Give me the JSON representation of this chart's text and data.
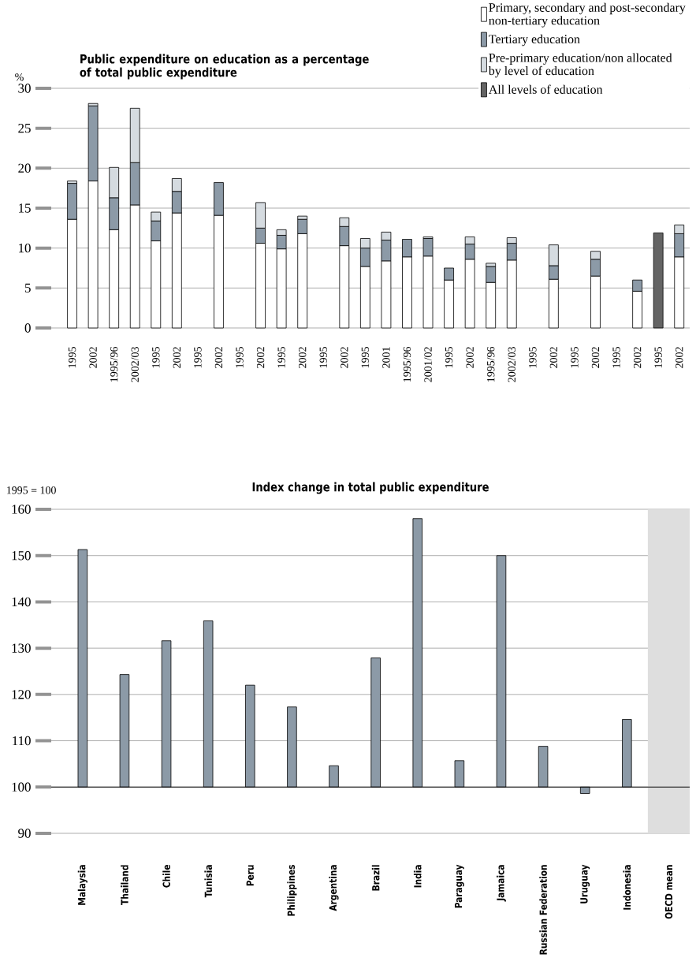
{
  "chart_data": [
    {
      "type": "bar",
      "title": "Public expenditure on education as a percentage of total public expenditure",
      "ylabel": "%",
      "categories": [
        "1995",
        "2002",
        "1995/96",
        "2002/03",
        "1995",
        "2002",
        "1995",
        "2002",
        "1995",
        "2002",
        "1995",
        "2002",
        "1995",
        "2002",
        "1995",
        "2001",
        "1995/96",
        "2001/02",
        "1995",
        "2002",
        "1995/96",
        "2002/03",
        "1995",
        "2002",
        "1995",
        "2002",
        "1995",
        "2002",
        "1995",
        "2002"
      ],
      "stacked": true,
      "series": [
        {
          "name": "Primary, secondary and post-secondary non-tertiary education",
          "color": "#ffffff",
          "values": [
            13.6,
            18.4,
            12.3,
            15.4,
            10.9,
            14.4,
            null,
            14.1,
            null,
            10.6,
            9.9,
            11.8,
            null,
            10.3,
            7.7,
            8.4,
            8.9,
            9.0,
            6.0,
            8.6,
            5.7,
            8.5,
            null,
            6.1,
            null,
            6.5,
            null,
            4.6,
            null,
            8.9
          ]
        },
        {
          "name": "Tertiary education",
          "color": "#8c9aa7",
          "values": [
            4.5,
            9.4,
            4.0,
            5.3,
            2.5,
            2.7,
            null,
            4.1,
            null,
            1.9,
            1.7,
            1.8,
            null,
            2.4,
            2.3,
            2.6,
            2.2,
            2.2,
            1.5,
            1.9,
            2.0,
            2.1,
            null,
            1.7,
            null,
            2.1,
            null,
            1.4,
            null,
            2.9
          ]
        },
        {
          "name": "Pre-primary education/non allocated by level of education",
          "color": "#d5dbe0",
          "values": [
            0.3,
            0.3,
            3.8,
            6.8,
            1.1,
            1.6,
            null,
            null,
            null,
            3.2,
            0.7,
            0.4,
            null,
            1.1,
            1.2,
            1.0,
            null,
            0.2,
            null,
            0.9,
            0.4,
            0.7,
            null,
            2.6,
            null,
            1.0,
            null,
            null,
            null,
            1.1
          ]
        },
        {
          "name": "All levels of education",
          "color": "#646464",
          "values": [
            null,
            null,
            null,
            null,
            null,
            null,
            null,
            null,
            null,
            null,
            null,
            null,
            null,
            null,
            null,
            null,
            null,
            null,
            null,
            null,
            null,
            null,
            null,
            null,
            null,
            null,
            null,
            null,
            11.9,
            null
          ]
        }
      ],
      "ylim": [
        0,
        30
      ],
      "yticks": [
        0,
        5,
        10,
        15,
        20,
        25,
        30
      ],
      "grid": "y",
      "legend": "top right"
    },
    {
      "type": "bar",
      "title": "Index change in total public expenditure",
      "ylabel": "1995 = 100",
      "categories": [
        "Malaysia",
        "Thailand",
        "Chile",
        "Tunisia",
        "Peru",
        "Philippines",
        "Argentina",
        "Brazil",
        "India",
        "Paraguay",
        "Jamaica",
        "Russian Federation",
        "Uruguay",
        "Indonesia",
        "OECD mean"
      ],
      "values": [
        51.3,
        24.3,
        31.6,
        35.9,
        22.0,
        17.3,
        4.6,
        27.9,
        58.0,
        5.7,
        50.0,
        8.8,
        -1.4,
        14.6,
        null
      ],
      "base": [
        100,
        100,
        100,
        100,
        100,
        100,
        100,
        100,
        100,
        100,
        100,
        100,
        100,
        100,
        null
      ],
      "color": "#8c9aa7",
      "ylim": [
        90,
        160
      ],
      "yticks": [
        90,
        100,
        110,
        120,
        130,
        140,
        150,
        160
      ],
      "grid": "y",
      "ref_lines": [
        {
          "axis": "y",
          "value": 100,
          "color": "#000000"
        }
      ],
      "bands": [
        {
          "axis": "x",
          "from": "OECD mean",
          "to": "OECD mean",
          "color": "#dedede"
        }
      ]
    }
  ]
}
